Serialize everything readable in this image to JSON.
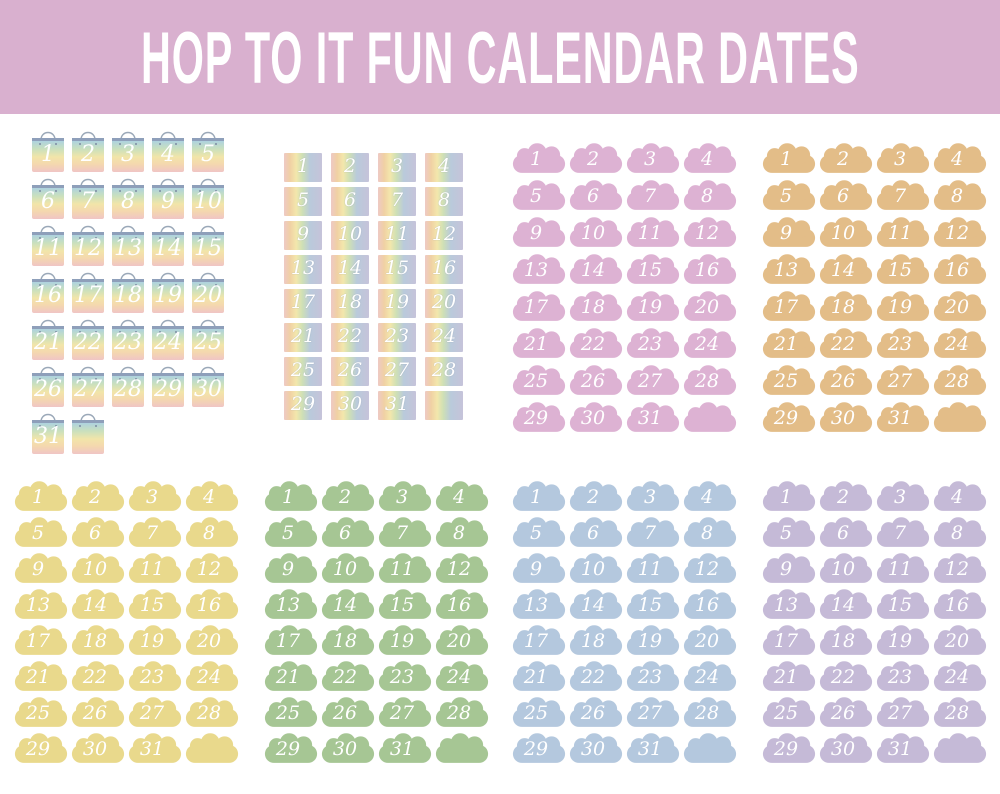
{
  "header": {
    "title": "HOP TO IT FUN CALENDAR DATES",
    "background": "#d9b0cf",
    "text_color": "#ffffff"
  },
  "page_background": "#ffffff",
  "number_color": "#ffffff",
  "sheets": [
    {
      "id": "gift-bags",
      "sticker": "rainbow-gift-bag",
      "columns": 5,
      "numbers": [
        1,
        2,
        3,
        4,
        5,
        6,
        7,
        8,
        9,
        10,
        11,
        12,
        13,
        14,
        15,
        16,
        17,
        18,
        19,
        20,
        21,
        22,
        23,
        24,
        25,
        26,
        27,
        28,
        29,
        30,
        31,
        null
      ],
      "colors": {
        "gradient": [
          "#aed2df",
          "#cae0bd",
          "#f2e5a9",
          "#f4d8ae",
          "#f0c5c5"
        ],
        "top_band": "#8e9fba",
        "handle": "#9aa8b8",
        "number": "#ffffff"
      }
    },
    {
      "id": "rainbow-squares",
      "sticker": "rainbow-striped-square",
      "columns": 4,
      "numbers": [
        1,
        2,
        3,
        4,
        5,
        6,
        7,
        8,
        9,
        10,
        11,
        12,
        13,
        14,
        15,
        16,
        17,
        18,
        19,
        20,
        21,
        22,
        23,
        24,
        25,
        26,
        27,
        28,
        29,
        30,
        31,
        null
      ],
      "colors": {
        "stripes": [
          "#eec9c5",
          "#f0d0a4",
          "#f3e7ac",
          "#cfe0b5",
          "#b9cadb",
          "#c6c3da"
        ],
        "number": "#ffffff"
      }
    },
    {
      "id": "pink-clouds",
      "sticker": "cloud",
      "columns": 4,
      "numbers": [
        1,
        2,
        3,
        4,
        5,
        6,
        7,
        8,
        9,
        10,
        11,
        12,
        13,
        14,
        15,
        16,
        17,
        18,
        19,
        20,
        21,
        22,
        23,
        24,
        25,
        26,
        27,
        28,
        29,
        30,
        31,
        null
      ],
      "colors": {
        "fill": "#ddb2d3",
        "number": "#ffffff"
      }
    },
    {
      "id": "orange-clouds",
      "sticker": "cloud",
      "columns": 4,
      "numbers": [
        1,
        2,
        3,
        4,
        5,
        6,
        7,
        8,
        9,
        10,
        11,
        12,
        13,
        14,
        15,
        16,
        17,
        18,
        19,
        20,
        21,
        22,
        23,
        24,
        25,
        26,
        27,
        28,
        29,
        30,
        31,
        null
      ],
      "colors": {
        "fill": "#e3bd88",
        "number": "#ffffff"
      }
    },
    {
      "id": "yellow-clouds",
      "sticker": "cloud",
      "columns": 4,
      "numbers": [
        1,
        2,
        3,
        4,
        5,
        6,
        7,
        8,
        9,
        10,
        11,
        12,
        13,
        14,
        15,
        16,
        17,
        18,
        19,
        20,
        21,
        22,
        23,
        24,
        25,
        26,
        27,
        28,
        29,
        30,
        31,
        null
      ],
      "colors": {
        "fill": "#e9d98c",
        "number": "#ffffff"
      }
    },
    {
      "id": "green-clouds",
      "sticker": "cloud",
      "columns": 4,
      "numbers": [
        1,
        2,
        3,
        4,
        5,
        6,
        7,
        8,
        9,
        10,
        11,
        12,
        13,
        14,
        15,
        16,
        17,
        18,
        19,
        20,
        21,
        22,
        23,
        24,
        25,
        26,
        27,
        28,
        29,
        30,
        31,
        null
      ],
      "colors": {
        "fill": "#a6c694",
        "number": "#ffffff"
      }
    },
    {
      "id": "blue-clouds",
      "sticker": "cloud",
      "columns": 4,
      "numbers": [
        1,
        2,
        3,
        4,
        5,
        6,
        7,
        8,
        9,
        10,
        11,
        12,
        13,
        14,
        15,
        16,
        17,
        18,
        19,
        20,
        21,
        22,
        23,
        24,
        25,
        26,
        27,
        28,
        29,
        30,
        31,
        null
      ],
      "colors": {
        "fill": "#b4c8de",
        "number": "#ffffff"
      }
    },
    {
      "id": "purple-clouds",
      "sticker": "cloud",
      "columns": 4,
      "numbers": [
        1,
        2,
        3,
        4,
        5,
        6,
        7,
        8,
        9,
        10,
        11,
        12,
        13,
        14,
        15,
        16,
        17,
        18,
        19,
        20,
        21,
        22,
        23,
        24,
        25,
        26,
        27,
        28,
        29,
        30,
        31,
        null
      ],
      "colors": {
        "fill": "#c5bad7",
        "number": "#ffffff"
      }
    }
  ]
}
